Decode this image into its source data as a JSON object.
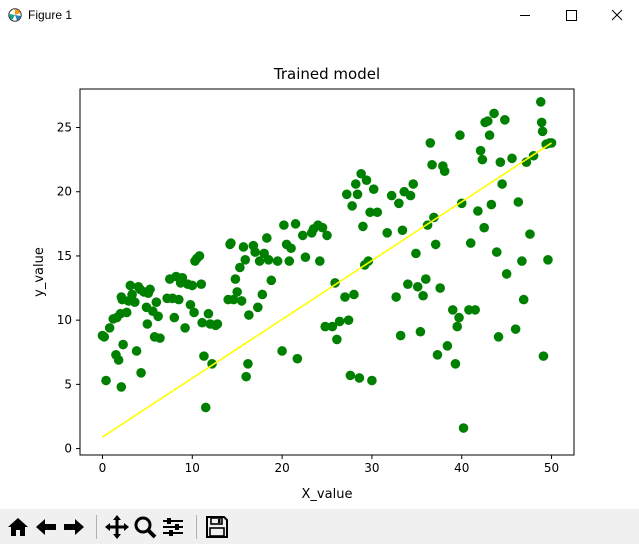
{
  "window": {
    "title": "Figure 1",
    "controls": [
      "minimize",
      "maximize",
      "close"
    ]
  },
  "toolbar": {
    "buttons": [
      "home-icon",
      "back-icon",
      "forward-icon",
      "pan-icon",
      "zoom-icon",
      "configure-subplots-icon",
      "save-icon"
    ]
  },
  "colors": {
    "points": "#008000",
    "regression_line": "#ffff00"
  },
  "chart_data": {
    "type": "scatter",
    "title": "Trained model",
    "xlabel": "X_value",
    "ylabel": "y_value",
    "xlim": [
      -2.5,
      52.5
    ],
    "ylim": [
      -0.5,
      28
    ],
    "xticks": [
      0,
      10,
      20,
      30,
      40,
      50
    ],
    "yticks": [
      0,
      5,
      10,
      15,
      20,
      25
    ],
    "grid": false,
    "series": [
      {
        "kind": "scatter",
        "color": "#008000",
        "points": [
          [
            0,
            8.8
          ],
          [
            0.2,
            8.7
          ],
          [
            0.4,
            5.3
          ],
          [
            0.8,
            9.4
          ],
          [
            1.2,
            10.1
          ],
          [
            1.6,
            10.2
          ],
          [
            1.5,
            7.3
          ],
          [
            1.8,
            6.9
          ],
          [
            2,
            10.5
          ],
          [
            2.1,
            11.8
          ],
          [
            2.2,
            11.6
          ],
          [
            2.3,
            8.1
          ],
          [
            2.1,
            4.8
          ],
          [
            2.7,
            10.6
          ],
          [
            2.9,
            11.5
          ],
          [
            3.1,
            12.7
          ],
          [
            3.3,
            12.0
          ],
          [
            3.6,
            11.4
          ],
          [
            3.8,
            7.6
          ],
          [
            4.0,
            12.6
          ],
          [
            4.2,
            12.4
          ],
          [
            4.3,
            5.9
          ],
          [
            4.6,
            12.2
          ],
          [
            4.9,
            11.0
          ],
          [
            5.0,
            9.7
          ],
          [
            5.1,
            12.1
          ],
          [
            5.3,
            12.4
          ],
          [
            5.6,
            10.7
          ],
          [
            5.8,
            8.7
          ],
          [
            6.0,
            11.4
          ],
          [
            6.2,
            10.3
          ],
          [
            6.4,
            8.6
          ],
          [
            7.2,
            11.7
          ],
          [
            7.5,
            13.2
          ],
          [
            7.8,
            11.7
          ],
          [
            8.0,
            10.2
          ],
          [
            8.2,
            13.4
          ],
          [
            8.5,
            11.6
          ],
          [
            8.7,
            12.9
          ],
          [
            8.9,
            13.3
          ],
          [
            9.2,
            9.4
          ],
          [
            9.5,
            12.8
          ],
          [
            9.8,
            11.2
          ],
          [
            10.0,
            12.7
          ],
          [
            10.2,
            10.6
          ],
          [
            10.3,
            14.6
          ],
          [
            10.5,
            14.8
          ],
          [
            10.8,
            15.0
          ],
          [
            11.0,
            12.8
          ],
          [
            11.1,
            9.8
          ],
          [
            11.3,
            7.2
          ],
          [
            11.5,
            3.2
          ],
          [
            11.8,
            10.5
          ],
          [
            12.0,
            9.7
          ],
          [
            12.2,
            6.6
          ],
          [
            12.6,
            9.6
          ],
          [
            12.8,
            9.7
          ],
          [
            14.0,
            11.6
          ],
          [
            14.2,
            15.9
          ],
          [
            14.3,
            16.0
          ],
          [
            14.6,
            11.6
          ],
          [
            14.8,
            13.2
          ],
          [
            15.0,
            12.2
          ],
          [
            15.3,
            14.1
          ],
          [
            15.5,
            11.5
          ],
          [
            15.7,
            15.7
          ],
          [
            15.9,
            14.7
          ],
          [
            16.0,
            5.6
          ],
          [
            16.2,
            6.6
          ],
          [
            16.3,
            10.4
          ],
          [
            16.8,
            15.8
          ],
          [
            17.0,
            15.3
          ],
          [
            17.3,
            11.0
          ],
          [
            17.5,
            14.6
          ],
          [
            17.8,
            12.0
          ],
          [
            18.0,
            15.2
          ],
          [
            18.3,
            16.4
          ],
          [
            18.5,
            14.7
          ],
          [
            18.8,
            13.1
          ],
          [
            19.5,
            14.6
          ],
          [
            20.0,
            7.6
          ],
          [
            20.2,
            17.4
          ],
          [
            20.5,
            15.9
          ],
          [
            20.8,
            14.6
          ],
          [
            21.0,
            15.6
          ],
          [
            21.5,
            17.5
          ],
          [
            21.7,
            7.0
          ],
          [
            22.3,
            16.6
          ],
          [
            22.6,
            14.9
          ],
          [
            23.3,
            16.8
          ],
          [
            23.5,
            17.1
          ],
          [
            24.0,
            17.4
          ],
          [
            24.2,
            14.6
          ],
          [
            24.5,
            17.2
          ],
          [
            24.8,
            9.5
          ],
          [
            25.0,
            16.6
          ],
          [
            25.6,
            9.5
          ],
          [
            25.9,
            12.9
          ],
          [
            26.1,
            8.5
          ],
          [
            26.4,
            9.9
          ],
          [
            27.0,
            11.8
          ],
          [
            27.2,
            19.8
          ],
          [
            27.4,
            10.0
          ],
          [
            27.6,
            5.7
          ],
          [
            27.8,
            18.9
          ],
          [
            28.0,
            12.0
          ],
          [
            28.2,
            20.6
          ],
          [
            28.4,
            19.8
          ],
          [
            28.6,
            5.5
          ],
          [
            28.8,
            21.4
          ],
          [
            29.0,
            17.3
          ],
          [
            29.2,
            14.3
          ],
          [
            29.4,
            20.9
          ],
          [
            29.6,
            14.6
          ],
          [
            29.8,
            18.4
          ],
          [
            30.0,
            5.3
          ],
          [
            30.2,
            20.2
          ],
          [
            30.6,
            18.4
          ],
          [
            31.7,
            16.8
          ],
          [
            32.2,
            19.7
          ],
          [
            32.7,
            11.8
          ],
          [
            33.0,
            19.1
          ],
          [
            33.2,
            8.8
          ],
          [
            33.4,
            17.0
          ],
          [
            33.6,
            20.0
          ],
          [
            34.0,
            12.8
          ],
          [
            34.3,
            19.7
          ],
          [
            34.6,
            20.6
          ],
          [
            34.9,
            15.2
          ],
          [
            35.1,
            12.6
          ],
          [
            35.4,
            9.1
          ],
          [
            35.7,
            11.9
          ],
          [
            36.0,
            13.2
          ],
          [
            36.2,
            17.4
          ],
          [
            36.5,
            23.8
          ],
          [
            36.7,
            22.1
          ],
          [
            36.9,
            18.0
          ],
          [
            37.1,
            15.9
          ],
          [
            37.3,
            7.3
          ],
          [
            37.6,
            12.5
          ],
          [
            37.9,
            22.0
          ],
          [
            38.1,
            21.6
          ],
          [
            38.4,
            8.0
          ],
          [
            39.0,
            10.8
          ],
          [
            39.3,
            6.6
          ],
          [
            39.5,
            9.5
          ],
          [
            39.7,
            10.2
          ],
          [
            39.8,
            24.4
          ],
          [
            40.0,
            19.1
          ],
          [
            40.2,
            1.6
          ],
          [
            40.8,
            10.8
          ],
          [
            41.0,
            16.0
          ],
          [
            41.5,
            10.8
          ],
          [
            41.8,
            18.5
          ],
          [
            42.1,
            23.2
          ],
          [
            42.3,
            22.5
          ],
          [
            42.5,
            17.2
          ],
          [
            42.6,
            25.4
          ],
          [
            42.9,
            25.5
          ],
          [
            43.1,
            24.4
          ],
          [
            43.3,
            19.0
          ],
          [
            43.6,
            26.1
          ],
          [
            43.9,
            15.3
          ],
          [
            44.1,
            8.7
          ],
          [
            44.3,
            22.3
          ],
          [
            44.5,
            20.6
          ],
          [
            44.8,
            25.6
          ],
          [
            45.0,
            13.6
          ],
          [
            45.6,
            22.6
          ],
          [
            46.0,
            9.3
          ],
          [
            46.3,
            19.2
          ],
          [
            46.7,
            14.6
          ],
          [
            46.9,
            11.6
          ],
          [
            47.2,
            22.3
          ],
          [
            47.6,
            16.7
          ],
          [
            48.0,
            22.8
          ],
          [
            48.8,
            27.0
          ],
          [
            48.9,
            25.4
          ],
          [
            49.0,
            24.7
          ],
          [
            49.1,
            7.2
          ],
          [
            49.4,
            23.7
          ],
          [
            49.6,
            14.7
          ],
          [
            49.8,
            23.8
          ],
          [
            50.0,
            23.8
          ]
        ]
      },
      {
        "kind": "line",
        "color": "#ffff00",
        "points": [
          [
            0,
            0.9
          ],
          [
            50,
            23.8
          ]
        ]
      }
    ]
  }
}
